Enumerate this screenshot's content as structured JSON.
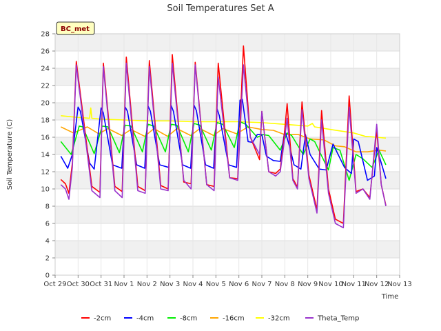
{
  "chart_data": {
    "type": "line",
    "title": "Soil Temperatures Set A",
    "xlabel": "Time",
    "ylabel": "Soil Temperature (C)",
    "station_label": "BC_met",
    "ylim": [
      0,
      28
    ],
    "yticks": [
      0,
      2,
      4,
      6,
      8,
      10,
      12,
      14,
      16,
      18,
      20,
      22,
      24,
      26,
      28
    ],
    "xlim": [
      0,
      15
    ],
    "xticks": [
      {
        "x": 0,
        "label": "Oct 29"
      },
      {
        "x": 1,
        "label": "Oct 30"
      },
      {
        "x": 2,
        "label": "Oct 31"
      },
      {
        "x": 3,
        "label": "Nov 1"
      },
      {
        "x": 4,
        "label": "Nov 2"
      },
      {
        "x": 5,
        "label": "Nov 3"
      },
      {
        "x": 6,
        "label": "Nov 4"
      },
      {
        "x": 7,
        "label": "Nov 5"
      },
      {
        "x": 8,
        "label": "Nov 6"
      },
      {
        "x": 9,
        "label": "Nov 7"
      },
      {
        "x": 10,
        "label": "Nov 8"
      },
      {
        "x": 11,
        "label": "Nov 9"
      },
      {
        "x": 12,
        "label": "Nov 10"
      },
      {
        "x": 13,
        "label": "Nov 11"
      },
      {
        "x": 14,
        "label": "Nov 12"
      },
      {
        "x": 15,
        "label": "Nov 13"
      }
    ],
    "grid": true,
    "legend_position": "bottom",
    "series": [
      {
        "name": "-2cm",
        "color": "#ff0000",
        "x": [
          0.25,
          0.45,
          0.6,
          0.75,
          0.92,
          1.1,
          1.6,
          1.95,
          2.1,
          2.6,
          2.92,
          3.1,
          3.6,
          3.92,
          4.1,
          4.6,
          4.92,
          5.1,
          5.6,
          5.92,
          6.1,
          6.6,
          6.92,
          7.1,
          7.6,
          7.95,
          8.2,
          8.5,
          8.9,
          9.0,
          9.3,
          9.6,
          9.8,
          9.95,
          10.1,
          10.35,
          10.55,
          10.75,
          11.05,
          11.4,
          11.6,
          11.9,
          12.2,
          12.55,
          12.8,
          13.1,
          13.4,
          13.7,
          14.0,
          14.2,
          14.4
        ],
        "values": [
          11.1,
          10.6,
          9.5,
          13.0,
          24.8,
          21.0,
          10.3,
          9.6,
          24.6,
          10.3,
          9.7,
          25.3,
          10.3,
          9.8,
          24.9,
          10.4,
          10.0,
          25.6,
          10.8,
          10.6,
          24.7,
          10.5,
          10.3,
          24.6,
          11.3,
          11.2,
          26.6,
          16.0,
          13.4,
          19.0,
          12.0,
          11.8,
          12.3,
          15.5,
          19.9,
          11.2,
          10.2,
          20.1,
          11.6,
          7.6,
          19.1,
          10.0,
          6.5,
          6.0,
          20.8,
          9.7,
          10.0,
          9.0,
          16.8,
          10.5,
          8.1
        ]
      },
      {
        "name": "-4cm",
        "color": "#0000ff",
        "x": [
          0.25,
          0.55,
          0.75,
          1.0,
          1.1,
          1.5,
          1.7,
          2.0,
          2.1,
          2.5,
          2.9,
          3.05,
          3.15,
          3.55,
          3.9,
          4.05,
          4.15,
          4.55,
          4.95,
          5.05,
          5.15,
          5.55,
          5.9,
          6.05,
          6.15,
          6.55,
          6.9,
          7.05,
          7.15,
          7.55,
          7.9,
          8.05,
          8.15,
          8.4,
          8.6,
          8.8,
          9.0,
          9.2,
          9.5,
          9.8,
          10.0,
          10.2,
          10.4,
          10.7,
          10.9,
          11.1,
          11.5,
          11.8,
          12.1,
          12.6,
          12.9,
          13.0,
          13.2,
          13.6,
          13.9,
          14.0,
          14.4
        ],
        "values": [
          13.8,
          12.4,
          14.0,
          19.5,
          19.0,
          13.0,
          12.3,
          19.4,
          18.8,
          12.8,
          12.4,
          19.5,
          19.0,
          12.8,
          12.4,
          19.6,
          19.0,
          12.8,
          12.5,
          19.7,
          19.0,
          12.8,
          12.4,
          19.7,
          19.1,
          12.8,
          12.4,
          19.3,
          18.5,
          12.8,
          12.5,
          20.3,
          20.4,
          15.5,
          15.4,
          16.3,
          16.3,
          13.8,
          13.3,
          13.2,
          16.8,
          15.0,
          12.8,
          12.3,
          16.3,
          14.0,
          12.3,
          12.2,
          15.2,
          12.5,
          11.8,
          15.8,
          15.5,
          11.0,
          11.5,
          14.8,
          11.2
        ]
      },
      {
        "name": "-8cm",
        "color": "#00ee00",
        "x": [
          0.25,
          0.7,
          1.05,
          1.2,
          1.7,
          2.05,
          2.3,
          2.8,
          3.05,
          3.3,
          3.8,
          4.05,
          4.3,
          4.8,
          5.05,
          5.3,
          5.8,
          6.05,
          6.3,
          6.8,
          7.05,
          7.3,
          7.8,
          8.05,
          8.3,
          8.8,
          9.05,
          9.3,
          9.8,
          10.1,
          10.3,
          10.8,
          11.1,
          11.3,
          11.9,
          12.1,
          12.4,
          12.8,
          13.1,
          13.4,
          13.8,
          14.1,
          14.4
        ],
        "values": [
          15.5,
          14.0,
          17.3,
          17.2,
          14.1,
          17.3,
          17.2,
          14.2,
          17.4,
          17.3,
          14.3,
          17.5,
          17.3,
          14.3,
          17.5,
          17.4,
          14.3,
          17.6,
          17.4,
          14.5,
          17.7,
          17.5,
          14.8,
          17.8,
          17.5,
          16.0,
          16.3,
          16.2,
          14.5,
          16.5,
          16.2,
          14.0,
          15.8,
          15.5,
          12.2,
          14.8,
          14.5,
          11.0,
          14.0,
          13.5,
          12.5,
          14.5,
          12.8
        ]
      },
      {
        "name": "-16cm",
        "color": "#ffa500",
        "x": [
          0.25,
          0.8,
          1.4,
          1.9,
          2.3,
          2.9,
          3.3,
          3.9,
          4.3,
          4.9,
          5.3,
          5.9,
          6.3,
          6.9,
          7.3,
          7.9,
          8.4,
          9.0,
          9.5,
          10.0,
          10.6,
          11.1,
          11.7,
          12.2,
          12.6,
          13.1,
          13.6,
          14.1,
          14.4
        ],
        "values": [
          17.2,
          16.5,
          17.2,
          16.4,
          17.0,
          16.2,
          16.9,
          16.1,
          17.0,
          16.1,
          17.0,
          16.2,
          17.0,
          16.2,
          17.0,
          16.4,
          17.2,
          16.9,
          16.8,
          16.3,
          16.3,
          15.8,
          15.7,
          15.0,
          14.9,
          14.3,
          14.3,
          14.5,
          14.4
        ]
      },
      {
        "name": "-32cm",
        "color": "#ffff00",
        "x": [
          0.25,
          1.0,
          1.5,
          1.55,
          1.6,
          2.0,
          3.0,
          4.0,
          5.0,
          6.0,
          7.0,
          8.0,
          9.0,
          10.0,
          11.0,
          11.2,
          11.3,
          12.0,
          13.0,
          13.5,
          14.0,
          14.4
        ],
        "values": [
          18.5,
          18.3,
          18.2,
          19.4,
          18.2,
          18.1,
          18.0,
          17.9,
          17.9,
          17.8,
          17.8,
          17.8,
          17.7,
          17.5,
          17.3,
          17.6,
          17.2,
          16.9,
          16.5,
          16.1,
          16.0,
          15.9
        ]
      },
      {
        "name": "Theta_Temp",
        "color": "#9933cc",
        "x": [
          0.25,
          0.45,
          0.6,
          0.75,
          0.92,
          1.1,
          1.6,
          1.95,
          2.1,
          2.6,
          2.92,
          3.1,
          3.6,
          3.92,
          4.1,
          4.6,
          4.92,
          5.1,
          5.6,
          5.92,
          6.1,
          6.6,
          6.92,
          7.1,
          7.6,
          7.95,
          8.2,
          8.5,
          8.9,
          9.0,
          9.3,
          9.6,
          9.8,
          9.95,
          10.1,
          10.35,
          10.55,
          10.75,
          11.05,
          11.4,
          11.6,
          11.9,
          12.2,
          12.55,
          12.8,
          13.1,
          13.4,
          13.7,
          14.0,
          14.2,
          14.4
        ],
        "values": [
          10.5,
          10.0,
          8.8,
          12.5,
          24.4,
          20.5,
          9.8,
          9.0,
          24.2,
          9.8,
          9.0,
          24.6,
          9.8,
          9.5,
          24.2,
          10.0,
          9.8,
          24.6,
          11.0,
          10.0,
          24.4,
          10.5,
          9.8,
          23.0,
          11.3,
          11.0,
          24.4,
          16.0,
          14.0,
          19.0,
          12.0,
          11.5,
          12.0,
          15.0,
          18.2,
          11.0,
          10.0,
          19.2,
          11.2,
          7.2,
          18.0,
          9.5,
          6.0,
          5.5,
          19.5,
          9.5,
          10.0,
          8.8,
          17.5,
          10.5,
          8.0
        ]
      }
    ]
  }
}
